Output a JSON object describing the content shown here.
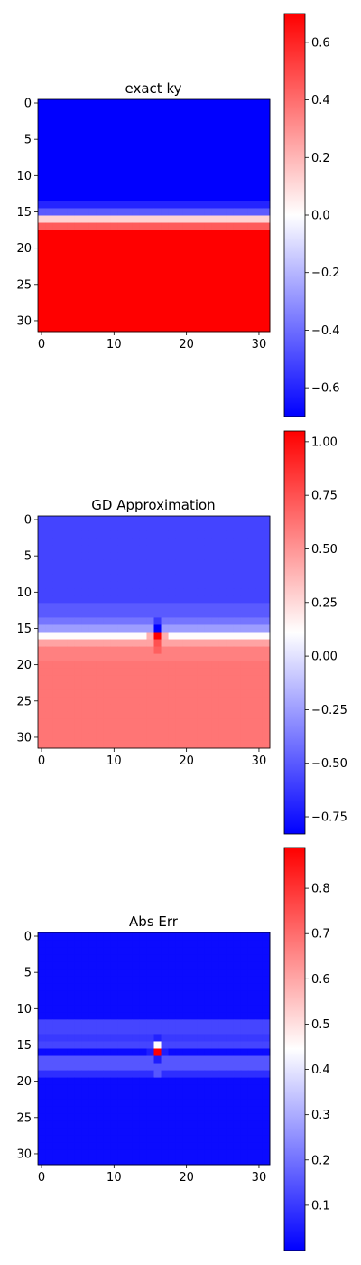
{
  "chart_data": [
    {
      "type": "heatmap",
      "title": "exact ky",
      "rows": 32,
      "cols": 32,
      "xticks": [
        0,
        10,
        20,
        30
      ],
      "yticks": [
        0,
        5,
        10,
        15,
        20,
        25,
        30
      ],
      "colormap": [
        "#0000ff",
        "#ffffff",
        "#ff0000"
      ],
      "colorbar": {
        "vmin": -0.7,
        "vmax": 0.7,
        "ticks": [
          -0.6,
          -0.4,
          -0.2,
          0.0,
          0.2,
          0.4,
          0.6
        ],
        "tick_labels": [
          "−0.6",
          "−0.4",
          "−0.2",
          "0.0",
          "0.2",
          "0.4",
          "0.6"
        ]
      },
      "row_values": [
        -0.7,
        -0.7,
        -0.7,
        -0.7,
        -0.7,
        -0.7,
        -0.7,
        -0.7,
        -0.7,
        -0.7,
        -0.7,
        -0.7,
        -0.7,
        -0.7,
        -0.6,
        -0.45,
        0.12,
        0.45,
        0.7,
        0.7,
        0.7,
        0.7,
        0.7,
        0.7,
        0.7,
        0.7,
        0.7,
        0.7,
        0.7,
        0.7,
        0.7,
        0.7
      ],
      "cells": []
    },
    {
      "type": "heatmap",
      "title": "GD Approximation",
      "rows": 32,
      "cols": 32,
      "xticks": [
        0,
        10,
        20,
        30
      ],
      "yticks": [
        0,
        5,
        10,
        15,
        20,
        25,
        30
      ],
      "colormap": [
        "#0000ff",
        "#ffffff",
        "#ff0000"
      ],
      "colorbar": {
        "vmin": -0.83,
        "vmax": 1.05,
        "ticks": [
          -0.75,
          -0.5,
          -0.25,
          0.0,
          0.25,
          0.5,
          0.75,
          1.0
        ],
        "tick_labels": [
          "−0.75",
          "−0.50",
          "−0.25",
          "0.00",
          "0.25",
          "0.50",
          "0.75",
          "1.00"
        ]
      },
      "row_values": [
        -0.58,
        -0.58,
        -0.58,
        -0.58,
        -0.58,
        -0.58,
        -0.58,
        -0.58,
        -0.58,
        -0.58,
        -0.58,
        -0.58,
        -0.5,
        -0.5,
        -0.4,
        -0.25,
        0.12,
        0.45,
        0.58,
        0.58,
        0.62,
        0.62,
        0.62,
        0.62,
        0.62,
        0.62,
        0.62,
        0.62,
        0.62,
        0.62,
        0.62,
        0.62
      ],
      "cells": [
        {
          "r": 15,
          "c": 16,
          "v": -0.83
        },
        {
          "r": 16,
          "c": 16,
          "v": 1.05
        },
        {
          "r": 17,
          "c": 16,
          "v": 0.75
        },
        {
          "r": 18,
          "c": 16,
          "v": 0.7
        },
        {
          "r": 16,
          "c": 15,
          "v": 0.4
        },
        {
          "r": 16,
          "c": 17,
          "v": 0.4
        },
        {
          "r": 14,
          "c": 16,
          "v": -0.62
        }
      ]
    },
    {
      "type": "heatmap",
      "title": "Abs Err",
      "rows": 32,
      "cols": 32,
      "xticks": [
        0,
        10,
        20,
        30
      ],
      "yticks": [
        0,
        5,
        10,
        15,
        20,
        25,
        30
      ],
      "colormap": [
        "#0000ff",
        "#ffffff",
        "#ff0000"
      ],
      "colorbar": {
        "vmin": 0.0,
        "vmax": 0.89,
        "ticks": [
          0.1,
          0.2,
          0.3,
          0.4,
          0.5,
          0.6,
          0.7,
          0.8
        ],
        "tick_labels": [
          "0.1",
          "0.2",
          "0.3",
          "0.4",
          "0.5",
          "0.6",
          "0.7",
          "0.8"
        ]
      },
      "row_values": [
        0.02,
        0.02,
        0.02,
        0.02,
        0.02,
        0.02,
        0.02,
        0.02,
        0.02,
        0.02,
        0.02,
        0.02,
        0.12,
        0.12,
        0.1,
        0.12,
        0.02,
        0.15,
        0.15,
        0.08,
        0.02,
        0.02,
        0.02,
        0.02,
        0.02,
        0.02,
        0.02,
        0.02,
        0.02,
        0.02,
        0.02,
        0.02
      ],
      "cells": [
        {
          "r": 15,
          "c": 16,
          "v": 0.45
        },
        {
          "r": 16,
          "c": 16,
          "v": 0.89
        },
        {
          "r": 14,
          "c": 16,
          "v": 0.06
        },
        {
          "r": 17,
          "c": 16,
          "v": 0.05
        },
        {
          "r": 16,
          "c": 15,
          "v": 0.05
        },
        {
          "r": 16,
          "c": 17,
          "v": 0.05
        },
        {
          "r": 19,
          "c": 16,
          "v": 0.15
        }
      ]
    }
  ]
}
